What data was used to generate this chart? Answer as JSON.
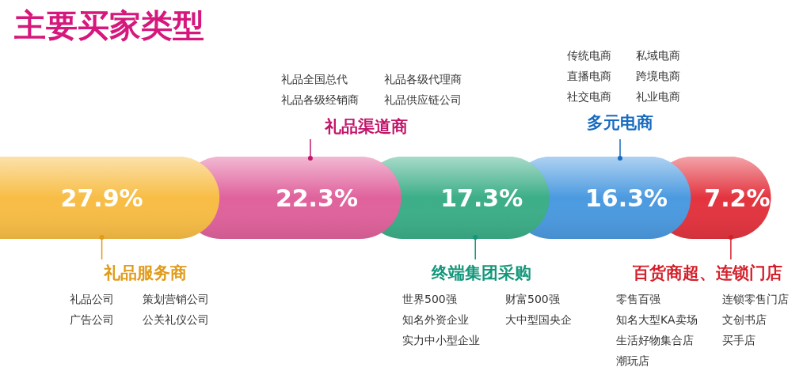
{
  "chart_data": {
    "type": "other",
    "title": "主要买家类型",
    "categories": [
      "礼品服务商",
      "礼品渠道商",
      "终端集团采购",
      "多元电商",
      "百货商超、连锁门店"
    ],
    "values": [
      27.9,
      22.3,
      17.3,
      16.3,
      7.2
    ],
    "value_labels": [
      "27.9%",
      "22.3%",
      "17.3%",
      "16.3%",
      "7.2%"
    ],
    "colors": [
      "#f8bd45",
      "#e0629c",
      "#3cae88",
      "#4b9ae0",
      "#e3343f"
    ],
    "annotations": [
      "礼品公司",
      "策划营销公司",
      "广告公司",
      "公关礼仪公司",
      "礼品全国总代",
      "礼品各级代理商",
      "礼品各级经销商",
      "礼品供应链公司",
      "世界500强",
      "财富500强",
      "知名外资企业",
      "大中型国央企",
      "实力中小型企业",
      "传统电商",
      "私域电商",
      "直播电商",
      "跨境电商",
      "社交电商",
      "礼业电商",
      "零售百强",
      "连锁零售门店",
      "知名大型KA卖场",
      "文创书店",
      "生活好物集合店",
      "买手店",
      "潮玩店"
    ]
  }
}
